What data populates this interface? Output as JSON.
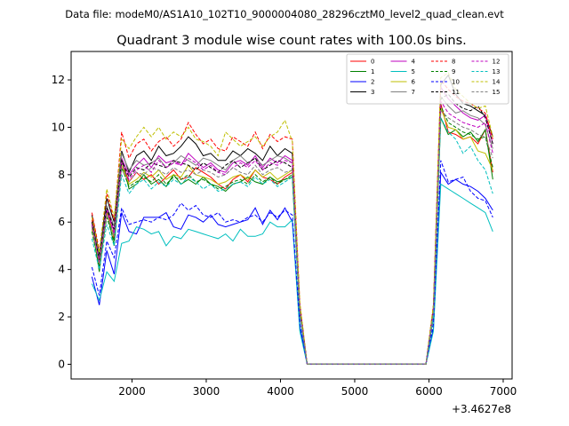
{
  "figure": {
    "suptitle": "Data file: modeM0/AS1A10_102T10_9000004080_28296cztM0_level2_quad_clean.evt"
  },
  "chart_data": {
    "type": "line",
    "title": "Quadrant 3 module wise count rates with 100.0s bins.",
    "xlabel": "",
    "ylabel": "",
    "x_offset_label": "+3.4627e8",
    "xlim": [
      1180,
      7120
    ],
    "ylim": [
      -0.62,
      13.2
    ],
    "xticks": [
      2000,
      3000,
      4000,
      5000,
      6000,
      7000
    ],
    "xtick_labels": [
      "2000",
      "3000",
      "4000",
      "5000",
      "6000",
      "7000"
    ],
    "yticks": [
      0,
      2,
      4,
      6,
      8,
      10,
      12
    ],
    "ytick_labels": [
      "0",
      "2",
      "4",
      "6",
      "8",
      "10",
      "12"
    ],
    "grid": false,
    "legend_position": "top-right",
    "legend_columns": 4,
    "x": [
      1460,
      1560,
      1660,
      1760,
      1860,
      1960,
      2060,
      2160,
      2260,
      2360,
      2460,
      2560,
      2660,
      2760,
      2860,
      2960,
      3060,
      3160,
      3260,
      3360,
      3460,
      3560,
      3660,
      3760,
      3860,
      3960,
      4060,
      4160,
      4260,
      4360,
      4460,
      4560,
      4660,
      4760,
      4860,
      4960,
      5060,
      5160,
      5260,
      5360,
      5460,
      5560,
      5660,
      5760,
      5860,
      5960,
      6060,
      6160,
      6260,
      6360,
      6460,
      6560,
      6660,
      6760,
      6860
    ],
    "series": [
      {
        "name": "0",
        "color": "#ff0000",
        "dash": "solid",
        "values": [
          6.1,
          4.4,
          6.6,
          5.3,
          8.6,
          7.7,
          8.1,
          7.8,
          8.0,
          7.6,
          7.9,
          8.2,
          7.8,
          7.9,
          8.3,
          8.1,
          7.9,
          7.6,
          7.4,
          7.8,
          8.0,
          7.7,
          8.2,
          7.9,
          7.8,
          7.6,
          7.9,
          8.1,
          2.3,
          0.0,
          0.0,
          0.0,
          0.0,
          0.0,
          0.0,
          0.0,
          0.0,
          0.0,
          0.0,
          0.0,
          0.0,
          0.0,
          0.0,
          0.0,
          0.0,
          0.0,
          2.2,
          11.0,
          9.8,
          9.7,
          9.5,
          9.6,
          9.3,
          9.9,
          8.1
        ]
      },
      {
        "name": "1",
        "color": "#008000",
        "dash": "solid",
        "values": [
          5.9,
          3.9,
          6.5,
          5.0,
          8.7,
          7.4,
          7.6,
          8.0,
          7.6,
          7.8,
          7.5,
          8.0,
          7.6,
          7.8,
          7.6,
          7.9,
          7.6,
          7.5,
          7.3,
          7.6,
          7.7,
          7.9,
          7.7,
          7.6,
          7.9,
          7.7,
          7.8,
          7.9,
          2.1,
          0.0,
          0.0,
          0.0,
          0.0,
          0.0,
          0.0,
          0.0,
          0.0,
          0.0,
          0.0,
          0.0,
          0.0,
          0.0,
          0.0,
          0.0,
          0.0,
          0.0,
          2.0,
          10.4,
          9.7,
          9.9,
          9.6,
          9.8,
          9.4,
          9.9,
          7.8
        ]
      },
      {
        "name": "2",
        "color": "#0000ff",
        "dash": "solid",
        "values": [
          3.7,
          2.5,
          4.8,
          3.8,
          6.4,
          5.6,
          5.5,
          6.2,
          6.2,
          6.2,
          6.4,
          5.8,
          5.7,
          6.3,
          6.2,
          6.0,
          6.3,
          5.9,
          5.8,
          5.9,
          6.0,
          6.1,
          6.6,
          5.9,
          6.5,
          6.1,
          6.6,
          6.0,
          1.6,
          0.0,
          0.0,
          0.0,
          0.0,
          0.0,
          0.0,
          0.0,
          0.0,
          0.0,
          0.0,
          0.0,
          0.0,
          0.0,
          0.0,
          0.0,
          0.0,
          0.0,
          1.5,
          8.1,
          7.6,
          7.8,
          7.6,
          7.5,
          7.3,
          7.0,
          6.5
        ]
      },
      {
        "name": "3",
        "color": "#000000",
        "dash": "solid",
        "values": [
          6.3,
          4.6,
          7.0,
          6.0,
          9.0,
          8.1,
          8.8,
          9.0,
          8.6,
          9.2,
          8.8,
          8.9,
          9.2,
          9.6,
          9.3,
          8.8,
          8.9,
          8.6,
          8.6,
          9.0,
          8.8,
          9.1,
          8.9,
          8.6,
          9.2,
          8.8,
          9.1,
          8.9,
          2.5,
          0.0,
          0.0,
          0.0,
          0.0,
          0.0,
          0.0,
          0.0,
          0.0,
          0.0,
          0.0,
          0.0,
          0.0,
          0.0,
          0.0,
          0.0,
          0.0,
          0.0,
          2.4,
          11.8,
          12.2,
          11.4,
          11.0,
          10.9,
          10.7,
          10.5,
          9.6
        ]
      },
      {
        "name": "4",
        "color": "#bf00bf",
        "dash": "solid",
        "values": [
          5.8,
          4.3,
          6.6,
          5.6,
          8.7,
          8.0,
          8.4,
          8.7,
          8.3,
          8.8,
          8.5,
          8.6,
          8.4,
          8.9,
          8.6,
          8.3,
          8.5,
          8.2,
          8.1,
          8.5,
          8.6,
          8.4,
          8.8,
          8.3,
          8.7,
          8.5,
          8.8,
          8.6,
          2.3,
          0.0,
          0.0,
          0.0,
          0.0,
          0.0,
          0.0,
          0.0,
          0.0,
          0.0,
          0.0,
          0.0,
          0.0,
          0.0,
          0.0,
          0.0,
          0.0,
          0.0,
          2.3,
          11.7,
          11.2,
          10.9,
          10.6,
          10.4,
          10.3,
          10.5,
          9.3
        ]
      },
      {
        "name": "5",
        "color": "#00bfbf",
        "dash": "solid",
        "values": [
          3.4,
          2.7,
          3.9,
          3.5,
          5.1,
          5.2,
          5.8,
          5.7,
          5.5,
          5.6,
          5.0,
          5.4,
          5.3,
          5.7,
          5.6,
          5.5,
          5.4,
          5.3,
          5.5,
          5.2,
          5.7,
          5.4,
          5.4,
          5.5,
          6.0,
          5.8,
          5.8,
          6.1,
          1.4,
          0.0,
          0.0,
          0.0,
          0.0,
          0.0,
          0.0,
          0.0,
          0.0,
          0.0,
          0.0,
          0.0,
          0.0,
          0.0,
          0.0,
          0.0,
          0.0,
          0.0,
          1.4,
          7.6,
          7.4,
          7.2,
          7.0,
          6.8,
          6.6,
          6.4,
          5.6
        ]
      },
      {
        "name": "6",
        "color": "#bfbf00",
        "dash": "solid",
        "values": [
          5.7,
          4.2,
          6.4,
          5.4,
          8.4,
          7.6,
          7.8,
          8.1,
          7.9,
          8.2,
          7.8,
          8.0,
          7.9,
          8.4,
          8.0,
          7.9,
          7.8,
          7.6,
          7.7,
          7.9,
          8.0,
          7.8,
          8.2,
          7.9,
          8.1,
          7.8,
          8.0,
          8.2,
          2.2,
          0.0,
          0.0,
          0.0,
          0.0,
          0.0,
          0.0,
          0.0,
          0.0,
          0.0,
          0.0,
          0.0,
          0.0,
          0.0,
          0.0,
          0.0,
          0.0,
          0.0,
          2.1,
          10.8,
          10.0,
          9.9,
          9.5,
          9.6,
          9.0,
          8.9,
          8.2
        ]
      },
      {
        "name": "7",
        "color": "#808080",
        "dash": "solid",
        "values": [
          6.0,
          4.5,
          6.7,
          5.8,
          8.9,
          8.2,
          8.6,
          8.4,
          8.5,
          8.7,
          8.3,
          8.5,
          8.8,
          8.6,
          8.4,
          8.7,
          8.6,
          8.4,
          8.2,
          8.6,
          8.8,
          8.5,
          8.7,
          8.4,
          8.6,
          8.8,
          8.7,
          8.5,
          2.4,
          0.0,
          0.0,
          0.0,
          0.0,
          0.0,
          0.0,
          0.0,
          0.0,
          0.0,
          0.0,
          0.0,
          0.0,
          0.0,
          0.0,
          0.0,
          0.0,
          0.0,
          2.3,
          11.3,
          10.9,
          10.6,
          10.7,
          10.5,
          10.4,
          10.1,
          9.1
        ]
      },
      {
        "name": "8",
        "color": "#ff0000",
        "dash": "dashed",
        "values": [
          6.4,
          4.8,
          7.2,
          6.1,
          9.8,
          8.7,
          9.3,
          9.5,
          9.0,
          9.4,
          9.6,
          9.2,
          9.5,
          10.2,
          9.7,
          9.3,
          9.5,
          9.1,
          9.0,
          9.6,
          9.4,
          9.2,
          9.8,
          9.1,
          9.7,
          9.4,
          9.6,
          9.5,
          2.6,
          0.0,
          0.0,
          0.0,
          0.0,
          0.0,
          0.0,
          0.0,
          0.0,
          0.0,
          0.0,
          0.0,
          0.0,
          0.0,
          0.0,
          0.0,
          0.0,
          0.0,
          2.5,
          12.0,
          11.6,
          11.3,
          11.1,
          11.0,
          10.8,
          10.6,
          9.5
        ]
      },
      {
        "name": "9",
        "color": "#008000",
        "dash": "dashed",
        "values": [
          5.6,
          4.1,
          6.2,
          5.2,
          8.3,
          7.5,
          7.7,
          7.9,
          7.7,
          8.0,
          7.6,
          7.9,
          7.8,
          8.0,
          7.7,
          7.8,
          7.6,
          7.4,
          7.5,
          7.7,
          7.8,
          7.6,
          8.0,
          7.7,
          7.9,
          7.6,
          7.8,
          8.0,
          2.2,
          0.0,
          0.0,
          0.0,
          0.0,
          0.0,
          0.0,
          0.0,
          0.0,
          0.0,
          0.0,
          0.0,
          0.0,
          0.0,
          0.0,
          0.0,
          0.0,
          0.0,
          2.1,
          10.9,
          10.2,
          10.0,
          9.8,
          9.7,
          9.5,
          9.6,
          8.3
        ]
      },
      {
        "name": "10",
        "color": "#0000ff",
        "dash": "dashed",
        "values": [
          4.1,
          2.9,
          5.2,
          4.5,
          6.6,
          5.9,
          6.0,
          6.1,
          6.0,
          6.2,
          6.1,
          6.3,
          6.8,
          6.5,
          6.7,
          6.3,
          6.2,
          6.4,
          6.0,
          6.1,
          6.0,
          6.2,
          6.3,
          6.0,
          6.4,
          6.2,
          6.5,
          6.3,
          1.7,
          0.0,
          0.0,
          0.0,
          0.0,
          0.0,
          0.0,
          0.0,
          0.0,
          0.0,
          0.0,
          0.0,
          0.0,
          0.0,
          0.0,
          0.0,
          0.0,
          0.0,
          1.7,
          8.6,
          7.7,
          7.8,
          7.9,
          7.3,
          7.0,
          6.9,
          6.2
        ]
      },
      {
        "name": "11",
        "color": "#000000",
        "dash": "dashed",
        "values": [
          6.0,
          4.4,
          6.6,
          5.7,
          8.6,
          7.9,
          8.3,
          8.2,
          8.5,
          8.4,
          8.3,
          8.6,
          8.5,
          8.4,
          8.2,
          8.5,
          8.3,
          8.1,
          8.4,
          8.6,
          8.3,
          8.5,
          8.7,
          8.2,
          8.4,
          8.6,
          8.5,
          8.3,
          2.3,
          0.0,
          0.0,
          0.0,
          0.0,
          0.0,
          0.0,
          0.0,
          0.0,
          0.0,
          0.0,
          0.0,
          0.0,
          0.0,
          0.0,
          0.0,
          0.0,
          0.0,
          2.3,
          11.2,
          11.4,
          11.0,
          10.8,
          10.7,
          10.9,
          10.4,
          9.3
        ]
      },
      {
        "name": "12",
        "color": "#bf00bf",
        "dash": "dashed",
        "values": [
          5.9,
          4.3,
          6.5,
          5.5,
          8.5,
          7.8,
          8.2,
          8.4,
          8.1,
          8.6,
          8.3,
          8.5,
          8.4,
          8.7,
          8.5,
          8.2,
          8.4,
          8.1,
          8.0,
          8.3,
          8.5,
          8.3,
          8.6,
          8.2,
          8.5,
          8.4,
          8.6,
          8.5,
          2.3,
          0.0,
          0.0,
          0.0,
          0.0,
          0.0,
          0.0,
          0.0,
          0.0,
          0.0,
          0.0,
          0.0,
          0.0,
          0.0,
          0.0,
          0.0,
          0.0,
          0.0,
          2.2,
          11.1,
          10.6,
          10.4,
          10.2,
          10.1,
          10.0,
          10.2,
          8.9
        ]
      },
      {
        "name": "13",
        "color": "#00bfbf",
        "dash": "dashed",
        "values": [
          5.3,
          4.0,
          5.9,
          5.0,
          8.0,
          7.2,
          7.6,
          7.8,
          7.4,
          7.7,
          7.5,
          7.8,
          7.6,
          7.9,
          7.7,
          7.4,
          7.6,
          7.3,
          7.4,
          7.6,
          7.7,
          7.5,
          7.9,
          7.6,
          7.8,
          7.5,
          7.7,
          7.9,
          2.1,
          0.0,
          0.0,
          0.0,
          0.0,
          0.0,
          0.0,
          0.0,
          0.0,
          0.0,
          0.0,
          0.0,
          0.0,
          0.0,
          0.0,
          0.0,
          0.0,
          0.0,
          2.0,
          10.4,
          9.8,
          9.5,
          8.9,
          9.2,
          8.6,
          8.2,
          7.2
        ]
      },
      {
        "name": "14",
        "color": "#bfbf00",
        "dash": "dashed",
        "values": [
          6.2,
          4.7,
          7.4,
          6.2,
          9.5,
          9.1,
          9.6,
          10.0,
          9.6,
          10.0,
          9.5,
          9.8,
          9.6,
          10.0,
          9.5,
          9.4,
          9.2,
          8.8,
          9.8,
          9.5,
          9.2,
          9.4,
          9.6,
          9.2,
          9.6,
          9.8,
          10.3,
          9.4,
          2.6,
          0.0,
          0.0,
          0.0,
          0.0,
          0.0,
          0.0,
          0.0,
          0.0,
          0.0,
          0.0,
          0.0,
          0.0,
          0.0,
          0.0,
          0.0,
          0.0,
          0.0,
          2.5,
          12.1,
          12.3,
          11.6,
          11.3,
          11.0,
          10.8,
          10.9,
          9.6
        ]
      },
      {
        "name": "15",
        "color": "#808080",
        "dash": "dashed",
        "values": [
          5.8,
          4.2,
          6.3,
          5.4,
          8.2,
          7.7,
          8.1,
          8.0,
          8.3,
          8.2,
          8.0,
          8.3,
          8.1,
          8.2,
          8.0,
          8.2,
          8.1,
          7.9,
          8.0,
          8.3,
          8.1,
          8.0,
          8.4,
          8.0,
          8.2,
          8.3,
          8.1,
          8.2,
          2.2,
          0.0,
          0.0,
          0.0,
          0.0,
          0.0,
          0.0,
          0.0,
          0.0,
          0.0,
          0.0,
          0.0,
          0.0,
          0.0,
          0.0,
          0.0,
          0.0,
          0.0,
          2.2,
          10.7,
          10.4,
          10.2,
          10.0,
          9.9,
          9.7,
          9.6,
          8.7
        ]
      }
    ]
  }
}
